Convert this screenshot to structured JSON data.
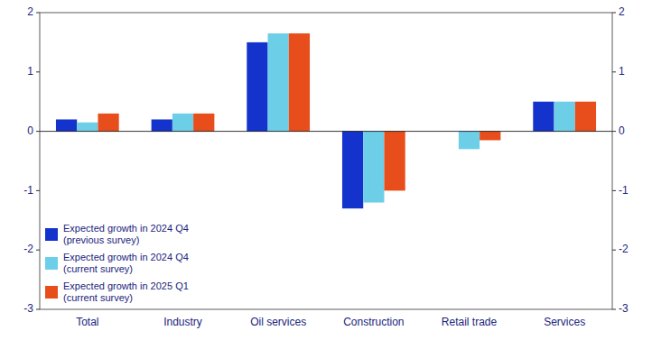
{
  "chart_data": {
    "type": "bar",
    "categories": [
      "Total",
      "Industry",
      "Oil services",
      "Construction",
      "Retail trade",
      "Services"
    ],
    "series": [
      {
        "name": "Expected growth in 2024 Q4\n(previous survey)",
        "color": "#1433cc",
        "values": [
          0.2,
          0.2,
          1.5,
          -1.3,
          0.0,
          0.5
        ]
      },
      {
        "name": "Expected growth in 2024 Q4\n(current survey)",
        "color": "#6dcee8",
        "values": [
          0.15,
          0.3,
          1.65,
          -1.2,
          -0.3,
          0.5
        ]
      },
      {
        "name": "Expected growth in 2025 Q1\n(current survey)",
        "color": "#e84e1b",
        "values": [
          0.3,
          0.3,
          1.65,
          -1.0,
          -0.15,
          0.5
        ]
      }
    ],
    "ylim": [
      -3,
      2
    ],
    "yticks": [
      -3,
      -2,
      -1,
      0,
      1,
      2
    ],
    "y2lim": [
      -3,
      2
    ],
    "y2ticks": [
      -3,
      -2,
      -1,
      0,
      1,
      2
    ],
    "grid": false,
    "legend": "lower left"
  }
}
